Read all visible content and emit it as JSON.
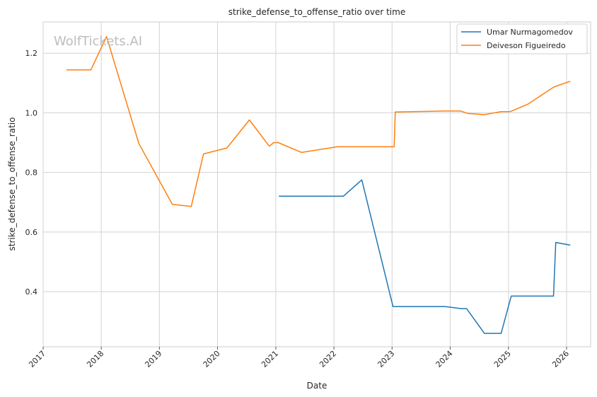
{
  "chart_data": {
    "type": "line",
    "title": "strike_defense_to_offense_ratio over time",
    "xlabel": "Date",
    "ylabel": "strike_defense_to_offense_ratio",
    "watermark": "WolfTickets.AI",
    "x_ticks": [
      "2017",
      "2018",
      "2019",
      "2020",
      "2021",
      "2022",
      "2023",
      "2024",
      "2025",
      "2026"
    ],
    "y_ticks": [
      "0.4",
      "0.6",
      "0.8",
      "1.0",
      "1.2"
    ],
    "xlim": [
      "2017-01-01",
      "2026-06-01"
    ],
    "ylim": [
      0.215,
      1.305
    ],
    "grid": true,
    "legend_position": "top-right",
    "series": [
      {
        "name": "Umar Nurmagomedov",
        "color": "#1f77b4",
        "points": [
          [
            "2021-01-20",
            0.72
          ],
          [
            "2022-03-01",
            0.72
          ],
          [
            "2022-06-25",
            0.775
          ],
          [
            "2023-01-07",
            0.35
          ],
          [
            "2023-12-01",
            0.35
          ],
          [
            "2024-03-09",
            0.343
          ],
          [
            "2024-04-13",
            0.343
          ],
          [
            "2024-08-03",
            0.26
          ],
          [
            "2024-11-16",
            0.26
          ],
          [
            "2025-01-18",
            0.385
          ],
          [
            "2025-10-11",
            0.385
          ],
          [
            "2025-10-25",
            0.565
          ],
          [
            "2026-01-24",
            0.556
          ]
        ]
      },
      {
        "name": "Deiveson Figueiredo",
        "color": "#ff7f0e",
        "points": [
          [
            "2017-05-27",
            1.144
          ],
          [
            "2017-10-28",
            1.144
          ],
          [
            "2018-02-03",
            1.256
          ],
          [
            "2018-08-25",
            0.897
          ],
          [
            "2019-03-23",
            0.693
          ],
          [
            "2019-07-20",
            0.686
          ],
          [
            "2019-10-05",
            0.862
          ],
          [
            "2020-02-29",
            0.882
          ],
          [
            "2020-07-19",
            0.976
          ],
          [
            "2020-11-21",
            0.888
          ],
          [
            "2020-12-19",
            0.9
          ],
          [
            "2021-01-16",
            0.9
          ],
          [
            "2021-06-12",
            0.867
          ],
          [
            "2022-01-22",
            0.886
          ],
          [
            "2023-01-14",
            0.886
          ],
          [
            "2023-01-21",
            1.003
          ],
          [
            "2023-12-01",
            1.006
          ],
          [
            "2024-03-09",
            1.006
          ],
          [
            "2024-04-20",
            0.998
          ],
          [
            "2024-08-03",
            0.994
          ],
          [
            "2024-11-16",
            1.004
          ],
          [
            "2025-01-11",
            1.004
          ],
          [
            "2025-05-03",
            1.029
          ],
          [
            "2025-10-11",
            1.086
          ],
          [
            "2025-10-25",
            1.089
          ],
          [
            "2026-01-24",
            1.106
          ]
        ]
      }
    ]
  }
}
